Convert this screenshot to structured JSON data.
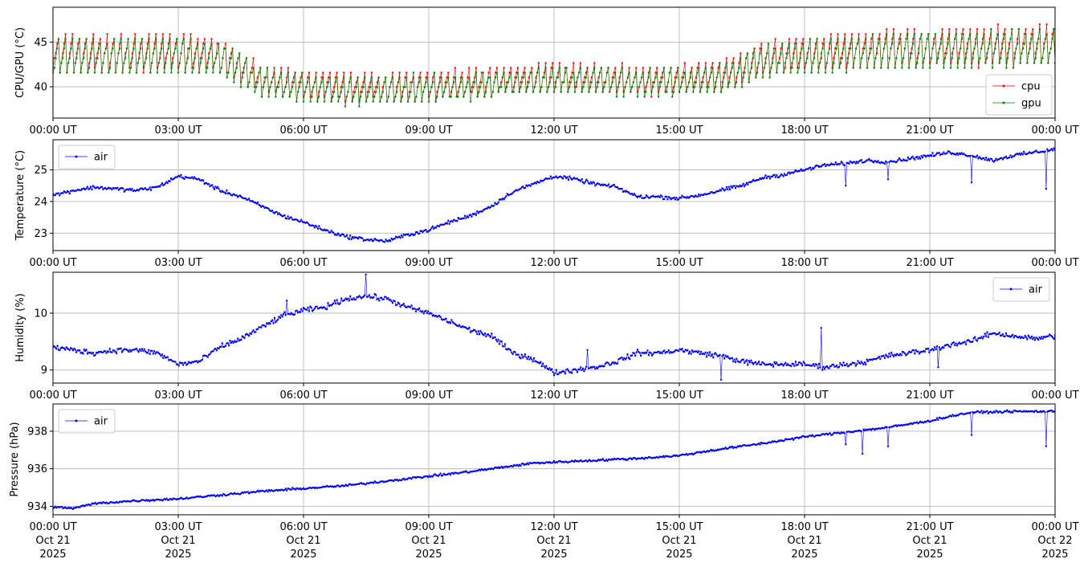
{
  "chart_data": [
    {
      "type": "line",
      "id": "cpu-gpu",
      "ylabel": "CPU/GPU (°C)",
      "xlabel": "",
      "ylim": [
        36.5,
        48.9
      ],
      "yticks": [
        40,
        45
      ],
      "xlim": [
        "00:00 UT",
        "24:00 UT"
      ],
      "xticks": [
        "00:00 UT",
        "03:00 UT",
        "06:00 UT",
        "09:00 UT",
        "12:00 UT",
        "15:00 UT",
        "18:00 UT",
        "21:00 UT",
        "00:00 UT"
      ],
      "grid": true,
      "legend": "lower-right",
      "series": [
        {
          "name": "cpu",
          "color": "#ff0000",
          "x_hours": [
            0,
            1,
            2,
            3,
            4,
            4.5,
            5,
            6,
            7,
            8,
            9,
            10,
            11,
            12,
            13,
            14,
            15,
            16,
            16.5,
            17,
            18,
            19,
            20,
            21,
            22,
            23,
            24
          ],
          "values": [
            43.5,
            43.5,
            43.5,
            43.6,
            43.3,
            42.0,
            40.5,
            40.0,
            39.6,
            39.7,
            39.9,
            40.1,
            40.6,
            40.8,
            40.8,
            40.5,
            40.6,
            41.0,
            41.8,
            43.0,
            43.4,
            43.8,
            44.0,
            44.2,
            44.3,
            44.4,
            44.5
          ],
          "amplitude": [
            3.4,
            3.5,
            3.5,
            3.4,
            3.3,
            3.0,
            2.8,
            2.7,
            2.8,
            2.8,
            2.8,
            2.6,
            2.5,
            2.6,
            2.6,
            2.6,
            2.6,
            2.8,
            3.0,
            3.1,
            3.3,
            3.4,
            3.5,
            3.5,
            3.6,
            3.6,
            3.6
          ]
        },
        {
          "name": "gpu",
          "color": "#008000",
          "x_hours": [
            0,
            1,
            2,
            3,
            4,
            4.5,
            5,
            6,
            7,
            8,
            9,
            10,
            11,
            12,
            13,
            14,
            15,
            16,
            16.5,
            17,
            18,
            19,
            20,
            21,
            22,
            23,
            24
          ],
          "values": [
            43.3,
            43.4,
            43.4,
            43.5,
            43.2,
            41.9,
            40.4,
            39.9,
            39.5,
            39.6,
            39.8,
            40.0,
            40.5,
            40.7,
            40.7,
            40.4,
            40.5,
            40.9,
            41.7,
            42.9,
            43.3,
            43.7,
            43.9,
            44.1,
            44.2,
            44.3,
            44.4
          ],
          "amplitude": [
            3.2,
            3.3,
            3.3,
            3.2,
            3.1,
            2.8,
            2.6,
            2.5,
            2.6,
            2.6,
            2.6,
            2.4,
            2.3,
            2.4,
            2.4,
            2.4,
            2.4,
            2.6,
            2.8,
            2.9,
            3.1,
            3.2,
            3.3,
            3.3,
            3.4,
            3.4,
            3.4
          ]
        }
      ]
    },
    {
      "type": "line",
      "id": "temperature",
      "ylabel": "Temperature (°C)",
      "xlabel": "",
      "ylim": [
        22.45,
        25.95
      ],
      "yticks": [
        23,
        24,
        25
      ],
      "xlim": [
        "00:00 UT",
        "24:00 UT"
      ],
      "xticks": [
        "00:00 UT",
        "03:00 UT",
        "06:00 UT",
        "09:00 UT",
        "12:00 UT",
        "15:00 UT",
        "18:00 UT",
        "21:00 UT",
        "00:00 UT"
      ],
      "grid": true,
      "legend": "upper-left",
      "series": [
        {
          "name": "air",
          "color": "#0000ff",
          "x_hours": [
            0,
            0.5,
            1,
            1.5,
            2,
            2.5,
            3,
            3.5,
            4,
            4.5,
            5,
            5.5,
            6,
            6.5,
            7,
            7.5,
            8,
            8.5,
            9,
            9.5,
            10,
            10.5,
            11,
            11.5,
            12,
            12.5,
            13,
            13.5,
            14,
            14.5,
            15,
            15.5,
            16,
            16.5,
            17,
            17.5,
            18,
            18.5,
            19,
            19.5,
            20,
            20.5,
            21,
            21.5,
            22,
            22.5,
            23,
            23.5,
            24
          ],
          "values": [
            24.2,
            24.35,
            24.45,
            24.4,
            24.35,
            24.45,
            24.8,
            24.7,
            24.35,
            24.15,
            23.85,
            23.55,
            23.35,
            23.1,
            22.9,
            22.8,
            22.75,
            22.95,
            23.1,
            23.35,
            23.55,
            23.85,
            24.3,
            24.55,
            24.8,
            24.7,
            24.55,
            24.45,
            24.15,
            24.15,
            24.1,
            24.2,
            24.35,
            24.5,
            24.75,
            24.85,
            25.0,
            25.15,
            25.2,
            25.3,
            25.25,
            25.35,
            25.45,
            25.55,
            25.45,
            25.3,
            25.45,
            25.55,
            25.65
          ],
          "noise": 0.05,
          "spikes": [
            {
              "x_hours": 19.0,
              "value": 24.5
            },
            {
              "x_hours": 20.0,
              "value": 24.7
            },
            {
              "x_hours": 22.0,
              "value": 24.6
            },
            {
              "x_hours": 23.8,
              "value": 24.4
            }
          ]
        }
      ]
    },
    {
      "type": "line",
      "id": "humidity",
      "ylabel": "Humidity (%)",
      "xlabel": "",
      "ylim": [
        8.77,
        10.72
      ],
      "yticks": [
        9,
        10
      ],
      "xlim": [
        "00:00 UT",
        "24:00 UT"
      ],
      "xticks": [
        "00:00 UT",
        "03:00 UT",
        "06:00 UT",
        "09:00 UT",
        "12:00 UT",
        "15:00 UT",
        "18:00 UT",
        "21:00 UT",
        "00:00 UT"
      ],
      "grid": true,
      "legend": "upper-right",
      "series": [
        {
          "name": "air",
          "color": "#0000ff",
          "x_hours": [
            0,
            0.5,
            1,
            1.5,
            2,
            2.5,
            3,
            3.5,
            4,
            4.5,
            5,
            5.5,
            6,
            6.5,
            7,
            7.5,
            8,
            8.5,
            9,
            9.5,
            10,
            10.5,
            11,
            11.5,
            12,
            12.5,
            13,
            13.5,
            14,
            14.5,
            15,
            15.5,
            16,
            16.5,
            17,
            17.5,
            18,
            18.5,
            19,
            19.5,
            20,
            20.5,
            21,
            21.5,
            22,
            22.5,
            23,
            23.5,
            24
          ],
          "values": [
            9.4,
            9.35,
            9.3,
            9.35,
            9.35,
            9.3,
            9.1,
            9.15,
            9.4,
            9.55,
            9.75,
            9.95,
            10.05,
            10.1,
            10.25,
            10.3,
            10.25,
            10.1,
            10.0,
            9.85,
            9.7,
            9.6,
            9.3,
            9.2,
            8.95,
            9.0,
            9.05,
            9.15,
            9.3,
            9.3,
            9.35,
            9.3,
            9.25,
            9.15,
            9.1,
            9.1,
            9.1,
            9.05,
            9.1,
            9.15,
            9.25,
            9.3,
            9.35,
            9.45,
            9.5,
            9.65,
            9.6,
            9.55,
            9.6
          ],
          "noise": 0.04,
          "spikes": [
            {
              "x_hours": 7.5,
              "value": 10.68
            },
            {
              "x_hours": 5.6,
              "value": 10.22
            },
            {
              "x_hours": 16.0,
              "value": 9.72
            },
            {
              "x_hours": 16.0,
              "value": 8.83
            },
            {
              "x_hours": 18.4,
              "value": 9.74
            },
            {
              "x_hours": 12.8,
              "value": 9.35
            },
            {
              "x_hours": 21.2,
              "value": 9.05
            }
          ]
        }
      ]
    },
    {
      "type": "line",
      "id": "pressure",
      "ylabel": "Pressure (hPa)",
      "xlabel": "",
      "ylim": [
        933.55,
        939.45
      ],
      "yticks": [
        934,
        936,
        938
      ],
      "xlim": [
        "00:00 UT",
        "24:00 UT"
      ],
      "xticks": [
        "00:00 UT\nOct 21\n2025",
        "03:00 UT\nOct 21\n2025",
        "06:00 UT\nOct 21\n2025",
        "09:00 UT\nOct 21\n2025",
        "12:00 UT\nOct 21\n2025",
        "15:00 UT\nOct 21\n2025",
        "18:00 UT\nOct 21\n2025",
        "21:00 UT\nOct 21\n2025",
        "00:00 UT\nOct 22\n2025"
      ],
      "grid": true,
      "legend": "upper-left",
      "series": [
        {
          "name": "air",
          "color": "#0000ff",
          "x_hours": [
            0,
            0.5,
            1,
            2,
            3,
            4,
            5,
            6,
            7,
            8,
            9,
            10,
            11,
            11.5,
            12,
            13,
            14,
            15,
            16,
            17,
            18,
            19,
            20,
            21,
            21.5,
            22,
            23,
            24
          ],
          "values": [
            933.95,
            933.9,
            934.15,
            934.3,
            934.4,
            934.6,
            934.8,
            934.95,
            935.1,
            935.35,
            935.6,
            935.85,
            936.15,
            936.3,
            936.35,
            936.45,
            936.55,
            936.7,
            937.05,
            937.35,
            937.7,
            937.95,
            938.2,
            938.55,
            938.8,
            939.0,
            939.05,
            939.05
          ],
          "noise": 0.05,
          "spikes": [
            {
              "x_hours": 19.4,
              "value": 936.8
            },
            {
              "x_hours": 19.0,
              "value": 937.3
            },
            {
              "x_hours": 20.0,
              "value": 937.2
            },
            {
              "x_hours": 22.0,
              "value": 937.8
            },
            {
              "x_hours": 23.8,
              "value": 937.2
            }
          ]
        }
      ]
    }
  ]
}
